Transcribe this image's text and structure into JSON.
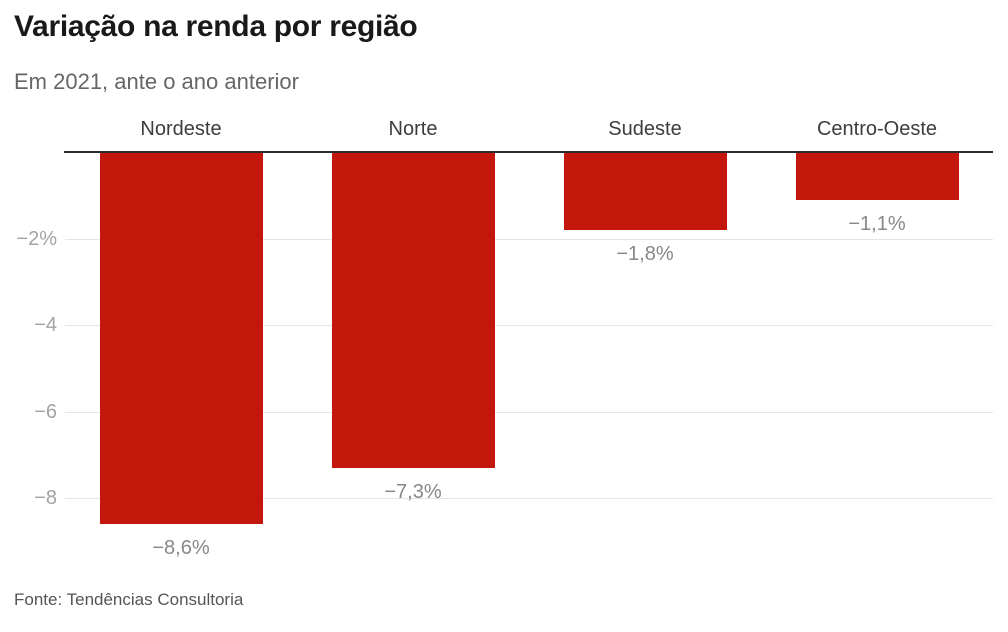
{
  "header": {
    "title": "Variação na renda por região",
    "subtitle": "Em 2021, ante o ano anterior"
  },
  "chart_data": {
    "type": "bar",
    "title": "Variação na renda por região",
    "subtitle": "Em 2021, ante o ano anterior",
    "categories": [
      "Nordeste",
      "Norte",
      "Sudeste",
      "Centro-Oeste"
    ],
    "values": [
      -8.6,
      -7.3,
      -1.8,
      -1.1
    ],
    "value_labels": [
      "−8,6%",
      "−7,3%",
      "−1,8%",
      "−1,1%"
    ],
    "unit": "%",
    "xlabel": "",
    "ylabel": "",
    "ylim": [
      -9,
      0
    ],
    "yticks": [
      {
        "value": -2,
        "label": "−2%"
      },
      {
        "value": -4,
        "label": "−4"
      },
      {
        "value": -6,
        "label": "−6"
      },
      {
        "value": -8,
        "label": "−8"
      }
    ],
    "grid": true,
    "legend": "none",
    "category_label_position": "above-bars",
    "value_label_position": "below-bars"
  },
  "footer": {
    "source": "Fonte: Tendências Consultoria"
  },
  "colors": {
    "bar": "#c4170c",
    "title": "#191919",
    "subtitle": "#666666",
    "category_label": "#3d3d3d",
    "tick_label": "#a3a3a3",
    "value_label": "#878787",
    "gridline": "#e5e5e5",
    "zero_line": "#2b2b2b",
    "source_label": "#555555",
    "background": "#ffffff"
  }
}
